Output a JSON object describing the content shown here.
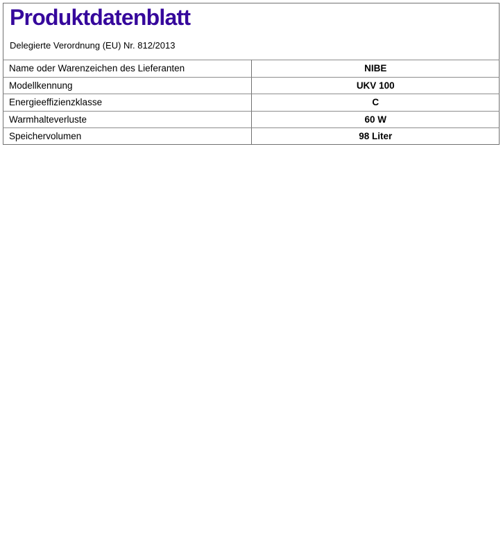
{
  "document": {
    "title": "Produktdatenblatt",
    "subtitle": "Delegierte Verordnung (EU) Nr. 812/2013"
  },
  "table": {
    "rows": [
      {
        "label": "Name oder Warenzeichen des Lieferanten",
        "value": "NIBE"
      },
      {
        "label": "Modellkennung",
        "value": "UKV 100"
      },
      {
        "label": "Energieeffizienzklasse",
        "value": "C"
      },
      {
        "label": "Warmhalteverluste",
        "value": "60 W"
      },
      {
        "label": "Speichervolumen",
        "value": "98 Liter"
      }
    ]
  },
  "colors": {
    "title": "#36089c",
    "border-strong": "#707070",
    "border-light": "#8c8c8c"
  }
}
